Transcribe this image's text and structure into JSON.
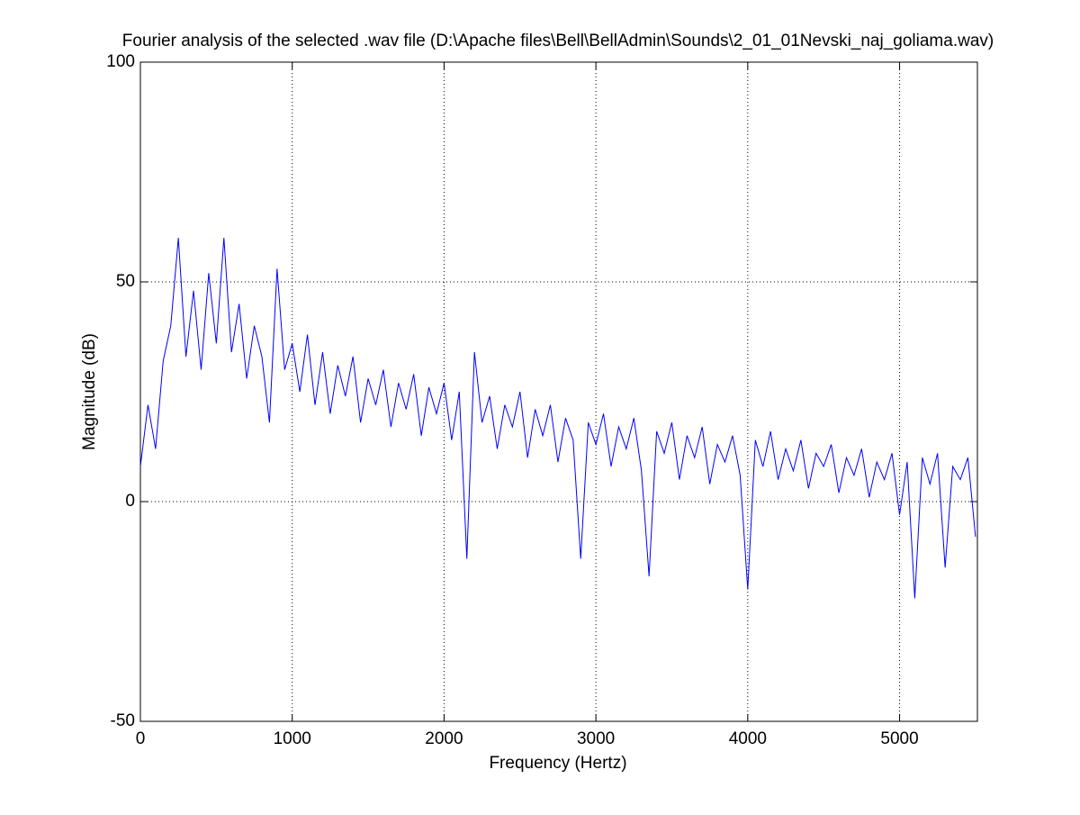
{
  "chart_data": {
    "type": "line",
    "title": "Fourier analysis of the selected .wav file (D:\\Apache files\\Bell\\BellAdmin\\Sounds\\2_01_01Nevski_naj_goliama.wav)",
    "x_label": "Frequency (Hertz)",
    "y_label": "Magnitude (dB)",
    "xlim": [
      0,
      5512.5
    ],
    "ylim": [
      -50,
      100
    ],
    "xticks": [
      0,
      1000,
      2000,
      3000,
      4000,
      5000
    ],
    "yticks": [
      -50,
      0,
      50,
      100
    ],
    "grid": true,
    "x": [
      0,
      50,
      100,
      150,
      200,
      250,
      300,
      350,
      400,
      450,
      500,
      550,
      600,
      650,
      700,
      750,
      800,
      850,
      900,
      950,
      1000,
      1050,
      1100,
      1150,
      1200,
      1250,
      1300,
      1350,
      1400,
      1450,
      1500,
      1550,
      1600,
      1650,
      1700,
      1750,
      1800,
      1850,
      1900,
      1950,
      2000,
      2050,
      2100,
      2150,
      2200,
      2250,
      2300,
      2350,
      2400,
      2450,
      2500,
      2550,
      2600,
      2650,
      2700,
      2750,
      2800,
      2850,
      2900,
      2950,
      3000,
      3050,
      3100,
      3150,
      3200,
      3250,
      3300,
      3350,
      3400,
      3450,
      3500,
      3550,
      3600,
      3650,
      3700,
      3750,
      3800,
      3850,
      3900,
      3950,
      4000,
      4050,
      4100,
      4150,
      4200,
      4250,
      4300,
      4350,
      4400,
      4450,
      4500,
      4550,
      4600,
      4650,
      4700,
      4750,
      4800,
      4850,
      4900,
      4950,
      5000,
      5050,
      5100,
      5150,
      5200,
      5250,
      5300,
      5350,
      5400,
      5450,
      5500
    ],
    "series": [
      {
        "color": "#0000ff",
        "values": [
          8,
          22,
          12,
          32,
          40,
          60,
          33,
          48,
          30,
          52,
          36,
          60,
          34,
          45,
          28,
          40,
          33,
          18,
          53,
          30,
          36,
          25,
          38,
          22,
          34,
          20,
          31,
          24,
          33,
          18,
          28,
          22,
          30,
          17,
          27,
          21,
          29,
          15,
          26,
          20,
          27,
          14,
          25,
          -13,
          34,
          18,
          24,
          12,
          22,
          17,
          25,
          10,
          21,
          15,
          22,
          9,
          19,
          14,
          -13,
          18,
          13,
          20,
          8,
          17,
          12,
          19,
          7,
          -17,
          16,
          11,
          18,
          5,
          15,
          10,
          17,
          4,
          13,
          9,
          15,
          6,
          -20,
          14,
          8,
          16,
          5,
          12,
          7,
          14,
          3,
          11,
          8,
          13,
          2,
          10,
          6,
          12,
          1,
          9,
          5,
          11,
          -3,
          9,
          -22,
          10,
          4,
          11,
          -15,
          8,
          5,
          10,
          -8
        ]
      }
    ]
  }
}
